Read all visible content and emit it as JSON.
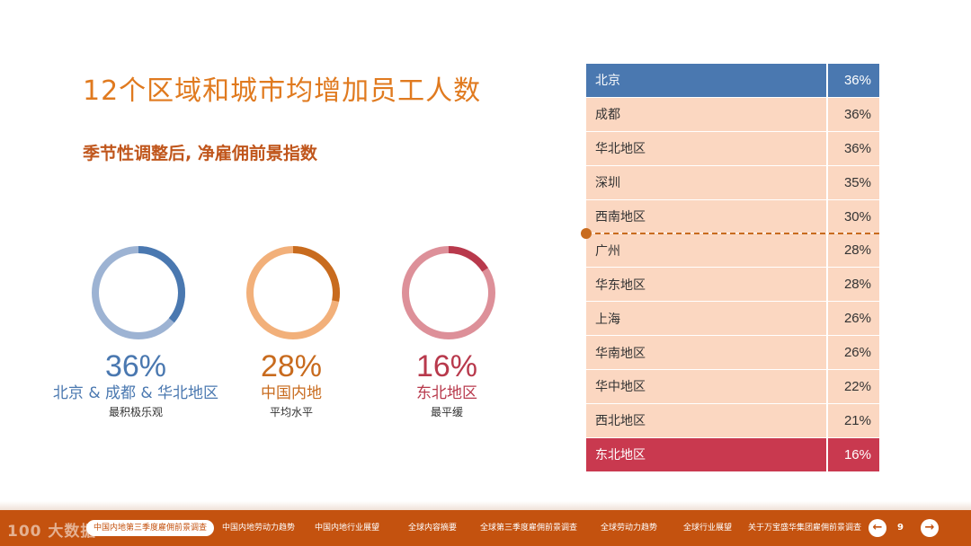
{
  "title": "12个区域和城市均增加员工人数",
  "subtitle": "季节性调整后, 净雇佣前景指数",
  "colors": {
    "accent_orange": "#e07a1f",
    "blue": "#4a78b0",
    "orange": "#c86b1e",
    "red": "#c9394f",
    "row_bg": "#fbd7c1",
    "footer_bg": "#c4520f"
  },
  "kpis": [
    {
      "pct": "36%",
      "region": "北京 & 成都 & 华北地区",
      "desc": "最积极乐观",
      "value": 36,
      "color": "#4a78b0",
      "light": "#9db3d3"
    },
    {
      "pct": "28%",
      "region": "中国内地",
      "desc": "平均水平",
      "value": 28,
      "color": "#c86b1e",
      "light": "#f2b07a"
    },
    {
      "pct": "16%",
      "region": "东北地区",
      "desc": "最平缓",
      "value": 16,
      "color": "#b8394c",
      "light": "#dd9099"
    }
  ],
  "table": [
    {
      "name": "北京",
      "value": "36%"
    },
    {
      "name": "成都",
      "value": "36%"
    },
    {
      "name": "华北地区",
      "value": "36%"
    },
    {
      "name": "深圳",
      "value": "35%"
    },
    {
      "name": "西南地区",
      "value": "30%"
    },
    {
      "name": "广州",
      "value": "28%"
    },
    {
      "name": "华东地区",
      "value": "28%"
    },
    {
      "name": "上海",
      "value": "26%"
    },
    {
      "name": "华南地区",
      "value": "26%"
    },
    {
      "name": "华中地区",
      "value": "22%"
    },
    {
      "name": "西北地区",
      "value": "21%"
    },
    {
      "name": "东北地区",
      "value": "16%"
    }
  ],
  "footer": {
    "logo": "100 大数据",
    "nav": [
      "中国内地第三季度雇佣前景调查",
      "中国内地劳动力趋势",
      "中国内地行业展望",
      "全球内容摘要",
      "全球第三季度雇佣前景调查",
      "全球劳动力趋势",
      "全球行业展望",
      "关于万宝盛华集团雇佣前景调查"
    ],
    "active_index": 0,
    "page_number": "9",
    "prev_icon": "arrow-left-icon",
    "next_icon": "arrow-right-icon"
  }
}
